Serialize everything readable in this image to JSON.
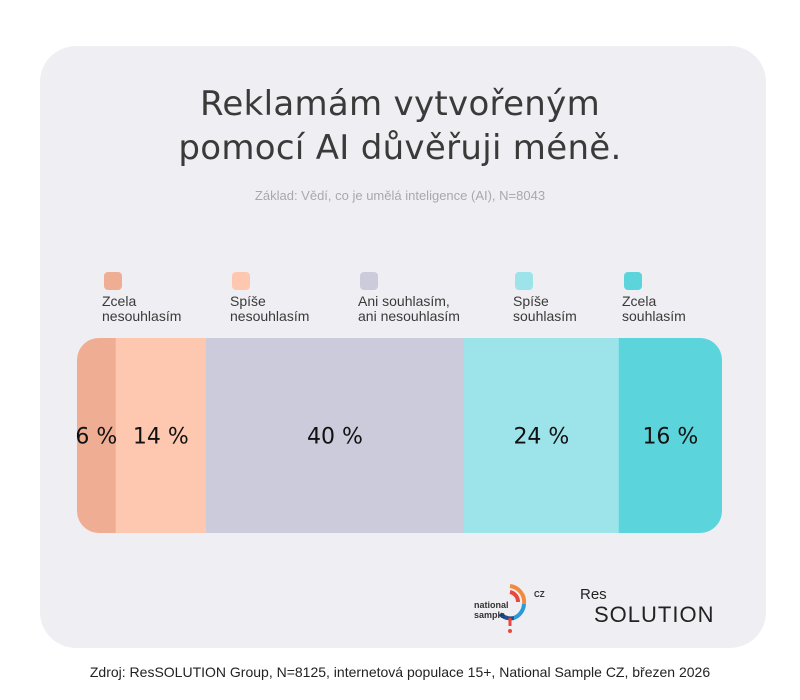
{
  "title_lines": [
    "Reklamám vytvořeným",
    "pomocí AI důvěřuji méně."
  ],
  "subtitle": "Základ: Vědí, co je umělá inteligence (AI), N=8043",
  "footer": "Zdroj: ResSOLUTION Group, N=8125, internetová populace 15+, National Sample CZ, březen 2026",
  "logos": {
    "national_sample": {
      "line1": "national",
      "line2": "sample",
      "cz": "CZ"
    },
    "ressolution": {
      "top": "Res",
      "bottom": "SOLUTION"
    }
  },
  "chart_data": {
    "type": "bar",
    "orientation": "horizontal-stacked-100",
    "title": "Reklamám vytvořeným pomocí AI důvěřuji méně.",
    "subtitle": "Základ: Vědí, co je umělá inteligence (AI), N=8043",
    "legend_position": "top",
    "grid": false,
    "series": [
      {
        "name": "Zcela nesouhlasím",
        "label_lines": [
          "Zcela",
          "nesouhlasím"
        ],
        "value": 6,
        "label": "6 %",
        "color": "#efae93"
      },
      {
        "name": "Spíše nesouhlasím",
        "label_lines": [
          "Spíše",
          "nesouhlasím"
        ],
        "value": 14,
        "label": "14 %",
        "color": "#fdc8af"
      },
      {
        "name": "Ani souhlasím, ani nesouhlasím",
        "label_lines": [
          "Ani souhlasím,",
          "ani nesouhlasím"
        ],
        "value": 40,
        "label": "40 %",
        "color": "#cbcbdb"
      },
      {
        "name": "Spíše souhlasím",
        "label_lines": [
          "Spíše",
          "souhlasím"
        ],
        "value": 24,
        "label": "24 %",
        "color": "#9de4ea"
      },
      {
        "name": "Zcela souhlasím",
        "label_lines": [
          "Zcela",
          "souhlasím"
        ],
        "value": 16,
        "label": "16 %",
        "color": "#5cd4dc"
      }
    ]
  }
}
